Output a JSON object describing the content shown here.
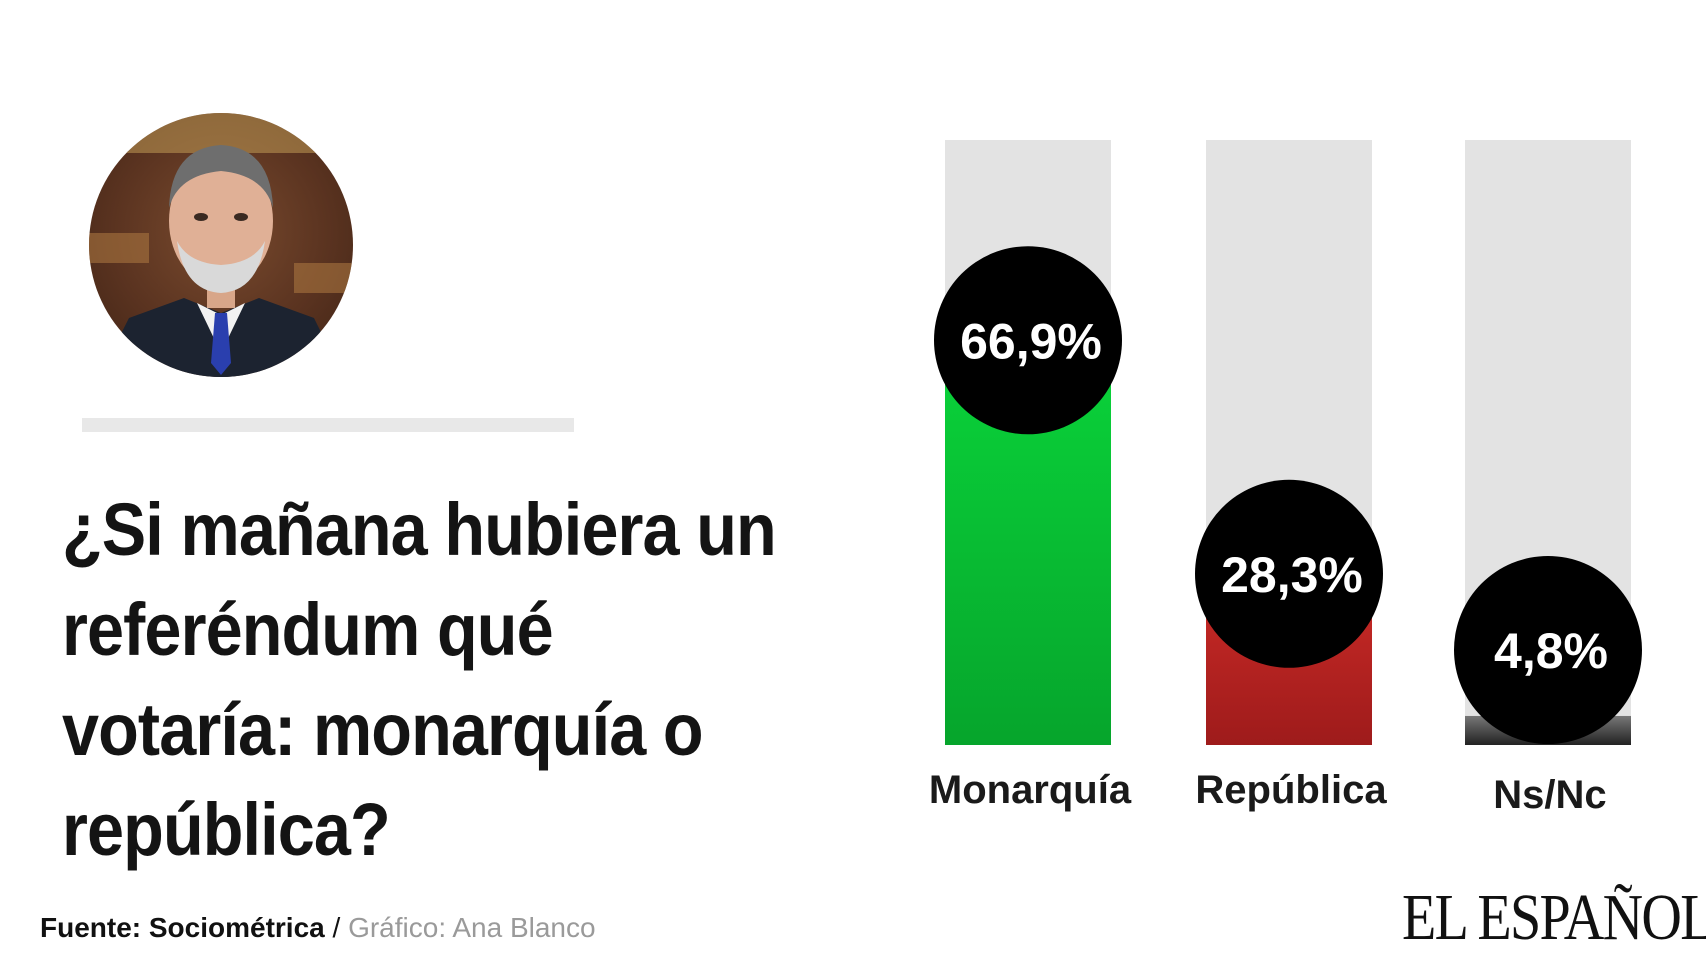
{
  "question": "¿Si mañana hubiera un referéndum qué votaría: monarquía o república?",
  "chart_data": {
    "type": "bar",
    "title": "¿Si mañana hubiera un referéndum qué votaría: monarquía o república?",
    "categories": [
      "Monarquía",
      "República",
      "Ns/Nc"
    ],
    "values": [
      66.9,
      28.3,
      4.8
    ],
    "value_labels": [
      "66,9%",
      "28,3%",
      "4,8%"
    ],
    "unit": "%",
    "ylim": [
      0,
      100
    ],
    "colors": [
      "#08b833",
      "#b3201f",
      "#2a2a2a"
    ],
    "track_color": "#e3e3e3",
    "legend": "none",
    "grid": false
  },
  "footer": {
    "source": "Fuente: Sociométrica",
    "separator": " / ",
    "credit": "Gráfico: Ana Blanco"
  },
  "logo": "EL ESPAÑOL"
}
